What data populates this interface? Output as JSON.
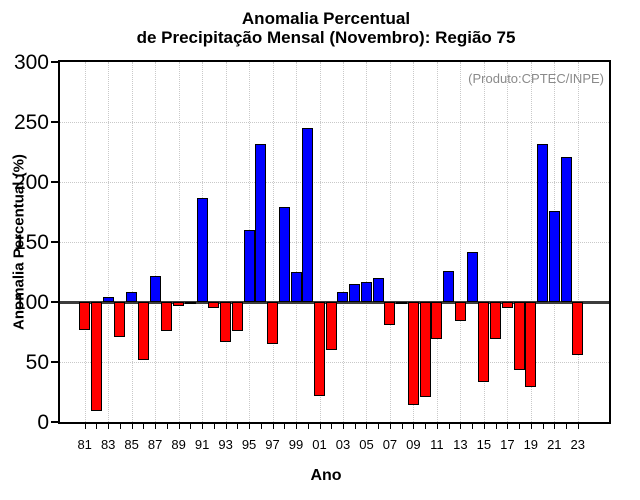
{
  "title": {
    "line1": "Anomalia Percentual",
    "line2": "de Precipitação Mensal (Novembro): Região 75"
  },
  "annotation": "(Produto:CPTEC/INPE)",
  "axes": {
    "ylabel": "Anomalia Percentual (%)",
    "xlabel": "Ano"
  },
  "colors": {
    "above": "#0000ff",
    "below": "#ff0000",
    "bar_border": "#000000",
    "baseline": "#3c3c3c",
    "grid": "#c9c9c9",
    "annotation": "#8a8a8a",
    "text": "#000000"
  },
  "chart_data": {
    "type": "bar",
    "title": "Anomalia Percentual de Precipitação Mensal (Novembro): Região 75",
    "xlabel": "Ano",
    "ylabel": "Anomalia Percentual (%)",
    "x": [
      1981,
      1982,
      1983,
      1984,
      1985,
      1986,
      1987,
      1988,
      1989,
      1990,
      1991,
      1992,
      1993,
      1994,
      1995,
      1996,
      1997,
      1998,
      1999,
      2000,
      2001,
      2002,
      2003,
      2004,
      2005,
      2006,
      2007,
      2008,
      2009,
      2010,
      2011,
      2012,
      2013,
      2014,
      2015,
      2016,
      2017,
      2018,
      2019,
      2020,
      2021,
      2022,
      2023
    ],
    "values": [
      77,
      9,
      104,
      71,
      108,
      52,
      122,
      76,
      97,
      99,
      187,
      95,
      67,
      76,
      160,
      232,
      65,
      179,
      125,
      245,
      22,
      60,
      108,
      115,
      117,
      120,
      81,
      100,
      14,
      21,
      69,
      126,
      84,
      142,
      33,
      69,
      95,
      43,
      29,
      232,
      176,
      221,
      56
    ],
    "baseline": 100,
    "ylim": [
      0,
      300
    ],
    "yticks": [
      0,
      50,
      100,
      150,
      200,
      250,
      300
    ],
    "xtick_labels": [
      "81",
      "83",
      "85",
      "87",
      "89",
      "91",
      "93",
      "95",
      "97",
      "99",
      "01",
      "03",
      "05",
      "07",
      "09",
      "11",
      "13",
      "15",
      "17",
      "19",
      "21",
      "23"
    ],
    "grid": "dotted",
    "legend": "none",
    "color_rule": "blue above 100, red below 100"
  }
}
